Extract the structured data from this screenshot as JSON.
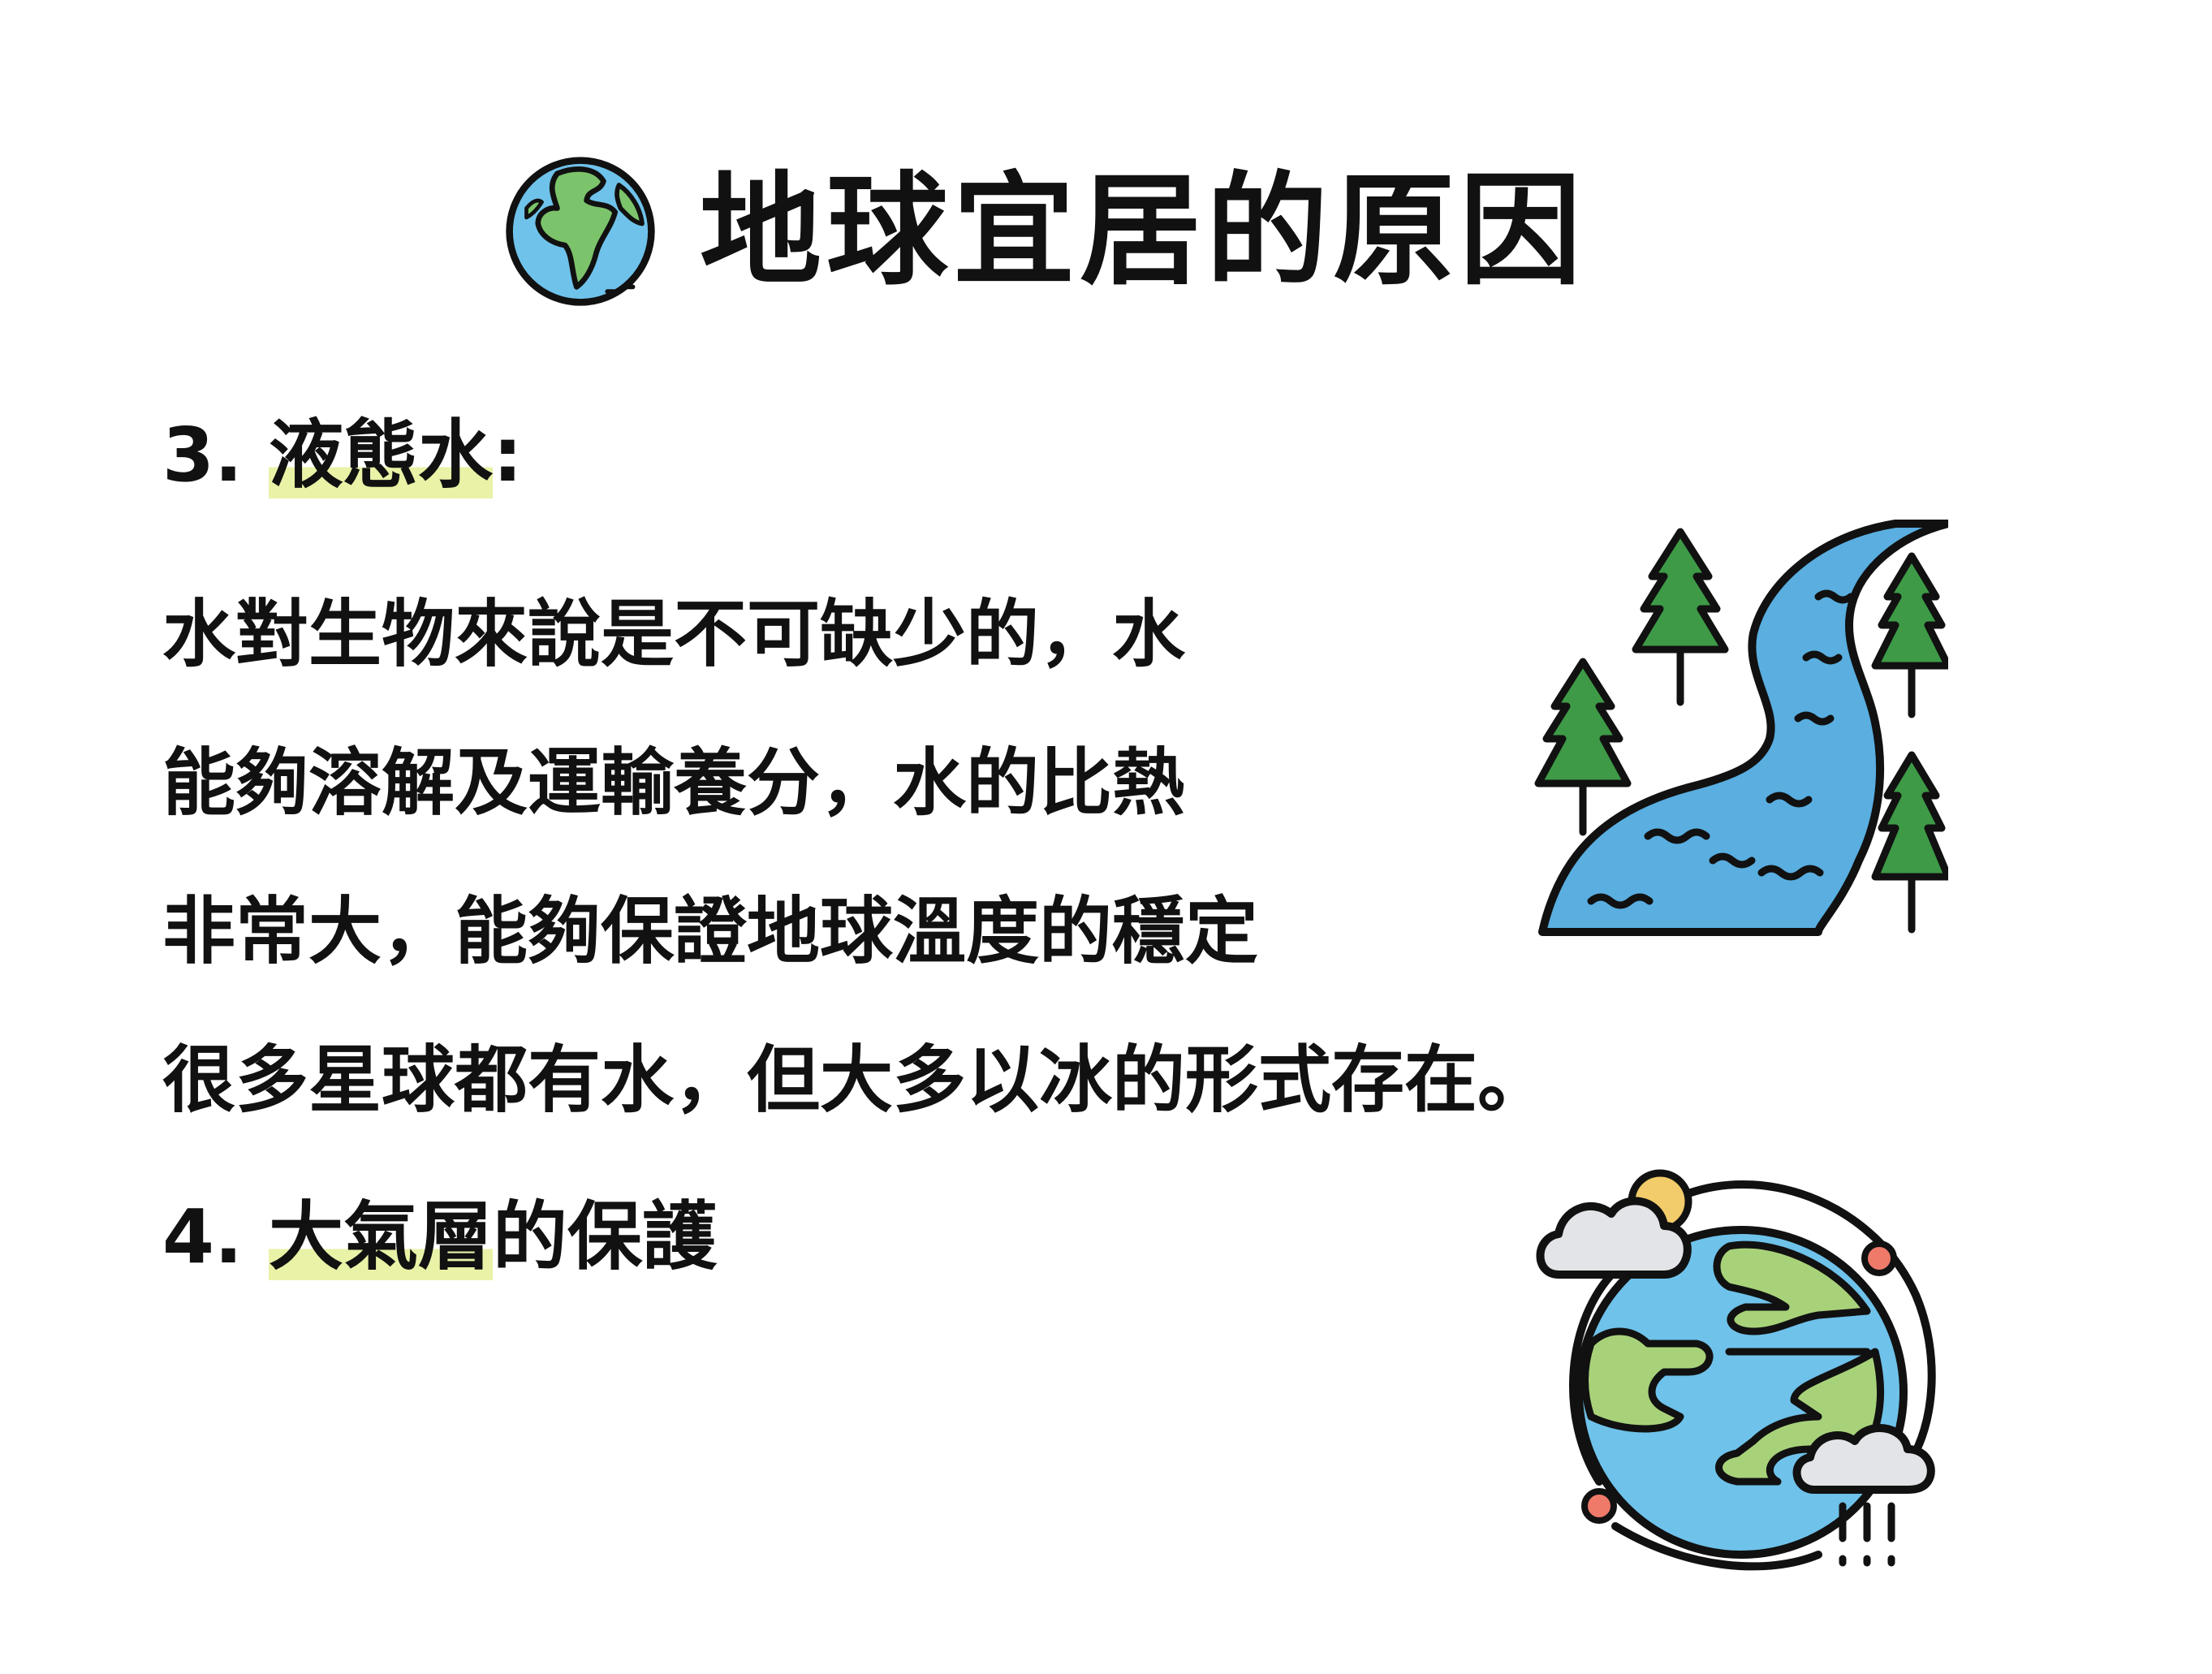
{
  "title": "地球宜居的原因",
  "section3": {
    "number": "3.",
    "highlight": "液態水",
    "colon": ":",
    "lines": [
      "水對生物來說是不可缺少的，水",
      "能夠溶解及運輸養分，水的比熱",
      "非常大，能夠保證地球溫度的穩定",
      "很多星球都有水，但大多以冰的形式存在。"
    ]
  },
  "section4": {
    "number": "4.",
    "highlight": "大氣層",
    "rest": "的保護"
  },
  "icons": {
    "title_icon": "globe-icon",
    "river_icon": "river-forest-icon",
    "planet_icon": "planet-atmosphere-icon"
  },
  "colors": {
    "highlight": "#e9f2a6",
    "water": "#5aaee0",
    "land": "#a8d27a",
    "tree": "#3e9a47",
    "cloud": "#e2e4e8",
    "sun": "#f2cb6a",
    "moon": "#ef7a6a"
  }
}
